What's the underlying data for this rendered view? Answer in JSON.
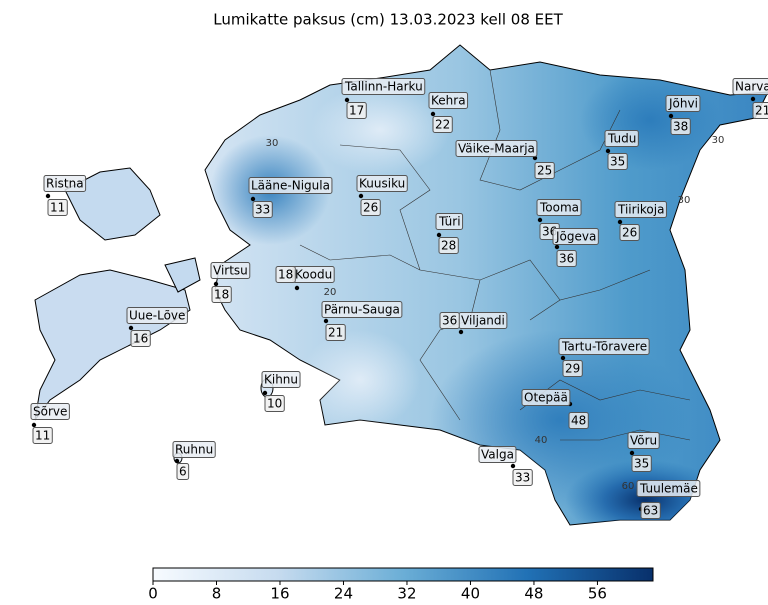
{
  "title": "Lumikatte paksus (cm) 13.03.2023 kell 08 EET",
  "stations": [
    {
      "name": "Tallinn-Harku",
      "value": 17
    },
    {
      "name": "Kehra",
      "value": 22
    },
    {
      "name": "Väike-Maarja",
      "value": 25
    },
    {
      "name": "Jõhvi",
      "value": 38
    },
    {
      "name": "Narva",
      "value": 21
    },
    {
      "name": "Tudu",
      "value": 35
    },
    {
      "name": "Ristna",
      "value": 11
    },
    {
      "name": "Lääne-Nigula",
      "value": 33
    },
    {
      "name": "Kuusiku",
      "value": 26
    },
    {
      "name": "Türi",
      "value": 28
    },
    {
      "name": "Tooma",
      "value": 36
    },
    {
      "name": "Jõgeva",
      "value": 36
    },
    {
      "name": "Tiirikoja",
      "value": 26
    },
    {
      "name": "Virtsu",
      "value": 18
    },
    {
      "name": "Koodu",
      "value": 18
    },
    {
      "name": "Pärnu-Sauga",
      "value": 21
    },
    {
      "name": "Viljandi",
      "value": 36
    },
    {
      "name": "Uue-Lõve",
      "value": 16
    },
    {
      "name": "Tartu-Tõravere",
      "value": 29
    },
    {
      "name": "Kihnu",
      "value": 10
    },
    {
      "name": "Sõrve",
      "value": 11
    },
    {
      "name": "Otepää",
      "value": 48
    },
    {
      "name": "Ruhnu",
      "value": 6
    },
    {
      "name": "Valga",
      "value": 33
    },
    {
      "name": "Võru",
      "value": 35
    },
    {
      "name": "Tuulemäe",
      "value": 63
    }
  ],
  "contour_labels": [
    30,
    30,
    30,
    20,
    40,
    60
  ],
  "colorbar": {
    "lim": [
      0,
      63
    ],
    "ticks": [
      0,
      8,
      16,
      24,
      32,
      40,
      48,
      56
    ]
  }
}
